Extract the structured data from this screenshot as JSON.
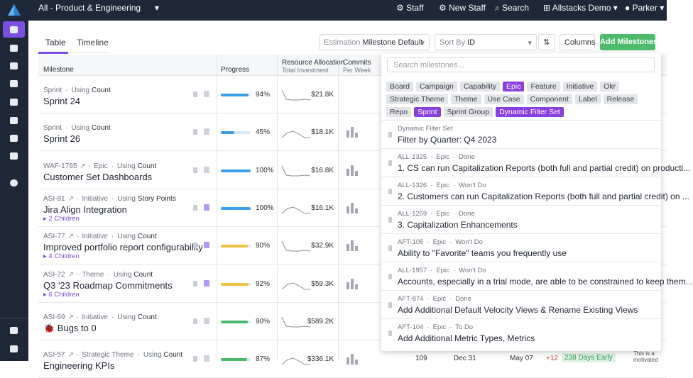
{
  "topbar": {
    "workspace": "All - Product & Engineering",
    "links": [
      "Staff",
      "New Staff",
      "Search",
      "Allstacks Demo",
      "Parker"
    ]
  },
  "tabs": [
    "Table",
    "Timeline"
  ],
  "controls": {
    "estimation_label": "Estimation",
    "estimation_value": "Milestone Default",
    "sort_label": "Sort By",
    "sort_value": "ID",
    "columns": "Columns",
    "add": "Add Milestones"
  },
  "table": {
    "headers": {
      "milestone": "Milestone",
      "progress": "Progress",
      "resource": "Resource Allocation",
      "resource_sub": "Total Investment",
      "commits": "Commits",
      "commits_sub": "Per Week"
    },
    "rows": [
      {
        "id": null,
        "type": "Sprint",
        "using": "Using",
        "method": "Count",
        "name": "Sprint 24",
        "children": null,
        "progress": 94,
        "progress_label": "94%",
        "progress_color": "#3b9ee8",
        "investment": "$21.8K"
      },
      {
        "id": null,
        "type": "Sprint",
        "using": "Using",
        "method": "Count",
        "name": "Sprint 26",
        "children": null,
        "progress": 45,
        "progress_label": "45%",
        "progress_color": "#3b9ee8",
        "investment": "$18.1K"
      },
      {
        "id": "WAF-1765",
        "type": "Epic",
        "using": "Using",
        "method": "Count",
        "name": "Customer Set Dashboards",
        "children": null,
        "progress": 100,
        "progress_label": "100%",
        "progress_color": "#3b9ee8",
        "investment": "$16.8K"
      },
      {
        "id": "ASI-81",
        "type": "Initiative",
        "using": "Using",
        "method": "Story Points",
        "name": "Jira Align Integration",
        "children": "2 Children",
        "progress": 100,
        "progress_label": "100%",
        "progress_color": "#3b9ee8",
        "investment": "$16.1K"
      },
      {
        "id": "ASI-77",
        "type": "Initiative",
        "using": "Using",
        "method": "Count",
        "name": "Improved portfolio report configurability",
        "children": "4 Children",
        "progress": 90,
        "progress_label": "90%",
        "progress_color": "#f0c040",
        "investment": "$32.9K"
      },
      {
        "id": "ASI-72",
        "type": "Theme",
        "using": "Using",
        "method": "Count",
        "name": "Q3 '23 Roadmap Commitments",
        "children": "6 Children",
        "progress": 92,
        "progress_label": "92%",
        "progress_color": "#f0c040",
        "investment": "$59.3K"
      },
      {
        "id": "ASI-69",
        "type": "Initiative",
        "using": "Using",
        "method": "Count",
        "name": "🐞 Bugs to 0",
        "children": null,
        "progress": 90,
        "progress_label": "90%",
        "progress_color": "#4cb86a",
        "investment": "$589.2K"
      },
      {
        "id": "ASI-57",
        "type": "Strategic Theme",
        "using": "Using",
        "method": "Count",
        "name": "Engineering KPIs",
        "children": null,
        "progress": 87,
        "progress_label": "87%",
        "progress_color": "#4cb86a",
        "investment": "$336.1K"
      }
    ],
    "last_row_extra": {
      "commits": "109",
      "start": "Dec 31",
      "end": "May 07",
      "delta": "+12",
      "badge": "238 Days Early",
      "note1": "This is a",
      "note2": "motivated"
    }
  },
  "dropdown": {
    "placeholder": "Search milestones...",
    "tags": [
      {
        "label": "Board",
        "active": false
      },
      {
        "label": "Campaign",
        "active": false
      },
      {
        "label": "Capability",
        "active": false
      },
      {
        "label": "Epic",
        "active": true
      },
      {
        "label": "Feature",
        "active": false
      },
      {
        "label": "Initiative",
        "active": false
      },
      {
        "label": "Okr",
        "active": false
      },
      {
        "label": "Strategic Theme",
        "active": false
      },
      {
        "label": "Theme",
        "active": false
      },
      {
        "label": "Use Case",
        "active": false
      },
      {
        "label": "Component",
        "active": false
      },
      {
        "label": "Label",
        "active": false
      },
      {
        "label": "Release",
        "active": false
      },
      {
        "label": "Repo",
        "active": false
      },
      {
        "label": "Sprint",
        "active": true
      },
      {
        "label": "Sprint Group",
        "active": false
      },
      {
        "label": "Dynamic Filter Set",
        "active": true
      }
    ],
    "items": [
      {
        "id": null,
        "type": "Dynamic Filter Set",
        "status": null,
        "title": "Filter by Quarter: Q4 2023"
      },
      {
        "id": "ALL-1325",
        "type": "Epic",
        "status": "Done",
        "title": "1. CS can run Capitalization Reports (both full and partial credit) on producti..."
      },
      {
        "id": "ALL-1326",
        "type": "Epic",
        "status": "Won't Do",
        "title": "2. Customers can run Capitalization Reports (both full and partial credit) on ..."
      },
      {
        "id": "ALL-1259",
        "type": "Epic",
        "status": "Done",
        "title": "3. Capitalization Enhancements"
      },
      {
        "id": "AFT-105",
        "type": "Epic",
        "status": "Won't Do",
        "title": "Ability to \"Favorite\" teams you frequently use"
      },
      {
        "id": "ALL-1957",
        "type": "Epic",
        "status": "Won't Do",
        "title": "Accounts, especially in a trial mode, are able to be constrained to keep them..."
      },
      {
        "id": "AFT-874",
        "type": "Epic",
        "status": "Done",
        "title": "Add Additional Default Velocity Views & Rename Existing Views"
      },
      {
        "id": "AFT-104",
        "type": "Epic",
        "status": "To Do",
        "title": "Add Additional Metric Types, Metrics"
      }
    ]
  }
}
